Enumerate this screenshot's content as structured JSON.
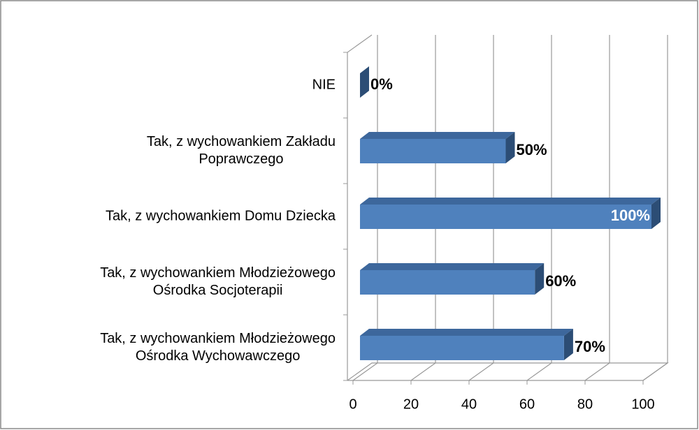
{
  "chart_data": {
    "type": "bar",
    "orientation": "horizontal",
    "categories": [
      "NIE",
      "Tak, z wychowankiem Zakładu\nPoprawczego",
      "Tak, z wychowankiem Domu Dziecka",
      "Tak, z wychowankiem Młodzieżowego\nOśrodka Socjoterapii",
      "Tak, z wychowankiem Młodzieżowego\nOśrodka Wychowawczego"
    ],
    "values": [
      0,
      50,
      100,
      60,
      70
    ],
    "value_labels": [
      "0%",
      "50%",
      "100%",
      "60%",
      "70%"
    ],
    "color": "#4f81bd",
    "xlim": [
      0,
      100
    ],
    "xticks": [
      0,
      20,
      40,
      60,
      80,
      100
    ],
    "grid": true
  }
}
